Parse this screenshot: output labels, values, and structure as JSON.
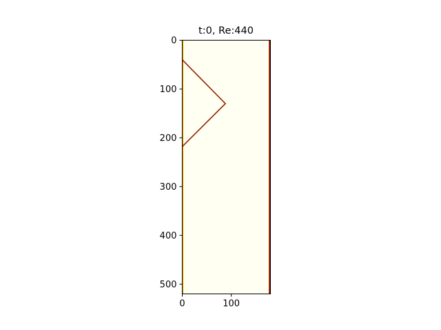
{
  "chart_data": {
    "type": "heatmap",
    "title": "t:0, Re:440",
    "xlabel": "",
    "ylabel": "",
    "image_extent": {
      "x": [
        0,
        180
      ],
      "y": [
        520,
        0
      ]
    },
    "y_inverted": true,
    "x_ticks": [
      0,
      100
    ],
    "y_ticks": [
      0,
      100,
      200,
      300,
      400,
      500
    ],
    "colors": {
      "background": "#fffff2",
      "obstacle_edge": "#9b1c00",
      "boundary_glow": "#f2b100"
    },
    "obstacle": {
      "shape": "triangle",
      "vertices": [
        [
          0,
          40
        ],
        [
          88,
          130
        ],
        [
          0,
          218
        ]
      ]
    },
    "right_wall_x": 178
  }
}
